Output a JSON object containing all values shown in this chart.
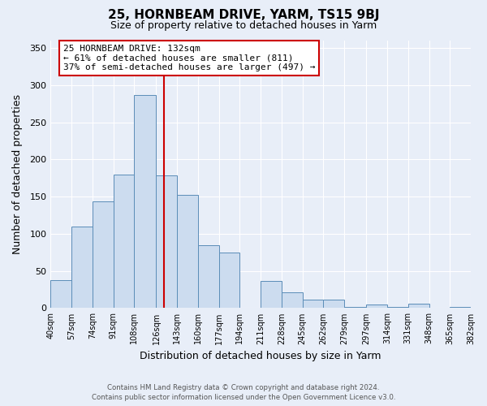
{
  "title": "25, HORNBEAM DRIVE, YARM, TS15 9BJ",
  "subtitle": "Size of property relative to detached houses in Yarm",
  "xlabel": "Distribution of detached houses by size in Yarm",
  "ylabel": "Number of detached properties",
  "bar_color": "#ccdcef",
  "bar_edge_color": "#5b8db8",
  "vline_x": 132,
  "vline_color": "#cc0000",
  "annotation_box_color": "#ffffff",
  "annotation_box_edge": "#cc0000",
  "bins": [
    40,
    57,
    74,
    91,
    108,
    126,
    143,
    160,
    177,
    194,
    211,
    228,
    245,
    262,
    279,
    297,
    314,
    331,
    348,
    365,
    382
  ],
  "bin_labels": [
    "40sqm",
    "57sqm",
    "74sqm",
    "91sqm",
    "108sqm",
    "126sqm",
    "143sqm",
    "160sqm",
    "177sqm",
    "194sqm",
    "211sqm",
    "228sqm",
    "245sqm",
    "262sqm",
    "279sqm",
    "297sqm",
    "314sqm",
    "331sqm",
    "348sqm",
    "365sqm",
    "382sqm"
  ],
  "heights": [
    38,
    110,
    144,
    180,
    287,
    179,
    152,
    85,
    75,
    0,
    36,
    21,
    11,
    11,
    2,
    5,
    2,
    6,
    1,
    2
  ],
  "ylim": [
    0,
    360
  ],
  "yticks": [
    0,
    50,
    100,
    150,
    200,
    250,
    300,
    350
  ],
  "footer_line1": "Contains HM Land Registry data © Crown copyright and database right 2024.",
  "footer_line2": "Contains public sector information licensed under the Open Government Licence v3.0.",
  "background_color": "#e8eef8",
  "plot_bg_color": "#e8eef8"
}
